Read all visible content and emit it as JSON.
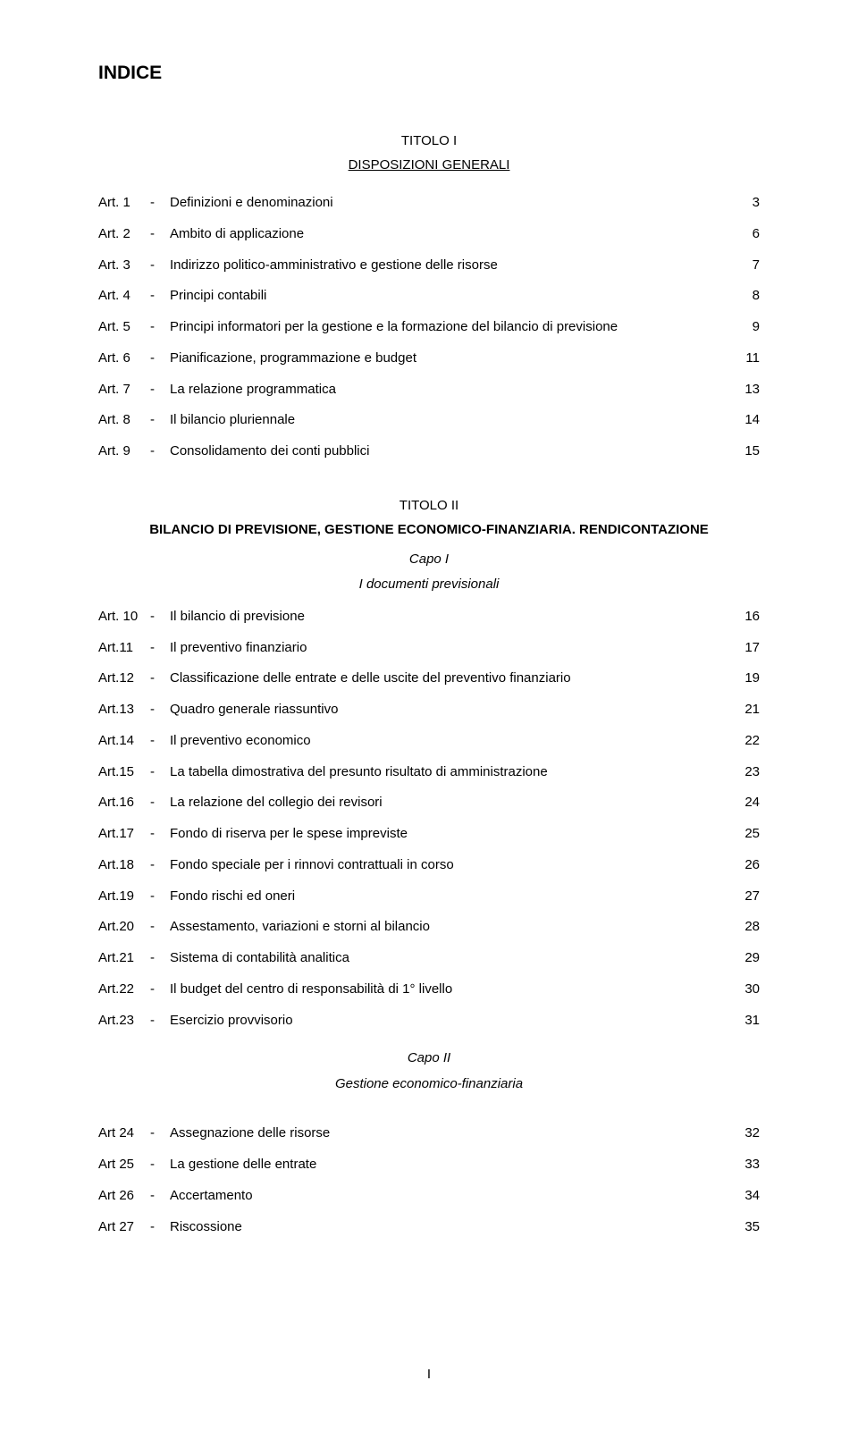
{
  "page": {
    "main_title": "INDICE",
    "page_number": "I"
  },
  "section1": {
    "titolo": "TITOLO I",
    "subtitle": "DISPOSIZIONI GENERALI",
    "items": [
      {
        "art": "Art. 1",
        "dash": "-",
        "desc": "Definizioni e denominazioni",
        "pg": "3"
      },
      {
        "art": "Art. 2",
        "dash": "-",
        "desc": "Ambito di applicazione",
        "pg": "6"
      },
      {
        "art": "Art. 3",
        "dash": "-",
        "desc": "Indirizzo politico-amministrativo e gestione delle risorse",
        "pg": "7"
      },
      {
        "art": "Art. 4",
        "dash": "-",
        "desc": "Principi contabili",
        "pg": "8"
      },
      {
        "art": "Art. 5",
        "dash": "-",
        "desc": "Principi informatori per la gestione e la formazione  del bilancio di previsione",
        "pg": "9"
      },
      {
        "art": "Art. 6",
        "dash": "-",
        "desc": "Pianificazione, programmazione e budget",
        "pg": "11"
      },
      {
        "art": "Art. 7",
        "dash": "-",
        "desc": "La relazione programmatica",
        "pg": "13"
      },
      {
        "art": "Art. 8",
        "dash": "-",
        "desc": "Il bilancio pluriennale",
        "pg": "14"
      },
      {
        "art": "Art. 9",
        "dash": "-",
        "desc": "Consolidamento dei conti pubblici",
        "pg": "15"
      }
    ]
  },
  "section2": {
    "titolo": "TITOLO II",
    "subtitle": "BILANCIO DI PREVISIONE, GESTIONE ECONOMICO-FINANZIARIA. RENDICONTAZIONE",
    "capo1": {
      "capo": "Capo I",
      "sub": "I documenti previsionali",
      "items": [
        {
          "art": "Art. 10",
          "dash": "-",
          "desc": "Il bilancio di previsione",
          "pg": "16"
        },
        {
          "art": "Art.11",
          "dash": "-",
          "desc": "Il preventivo finanziario",
          "pg": "17"
        },
        {
          "art": "Art.12",
          "dash": "-",
          "desc": "Classificazione delle entrate e delle uscite del preventivo finanziario",
          "pg": "19"
        },
        {
          "art": "Art.13",
          "dash": "-",
          "desc": "Quadro generale riassuntivo",
          "pg": "21"
        },
        {
          "art": "Art.14",
          "dash": "-",
          "desc": "Il preventivo economico",
          "pg": "22"
        },
        {
          "art": "Art.15",
          "dash": "-",
          "desc": "La tabella dimostrativa del presunto risultato di amministrazione",
          "pg": "23"
        },
        {
          "art": "Art.16",
          "dash": "-",
          "desc": "La relazione del collegio dei revisori",
          "pg": "24"
        },
        {
          "art": "Art.17",
          "dash": "-",
          "desc": "Fondo di riserva per le spese impreviste",
          "pg": "25"
        },
        {
          "art": "Art.18",
          "dash": "-",
          "desc": "Fondo speciale per i rinnovi contrattuali in corso",
          "pg": "26"
        },
        {
          "art": "Art.19",
          "dash": "-",
          "desc": "Fondo rischi ed oneri",
          "pg": "27"
        },
        {
          "art": "Art.20",
          "dash": "-",
          "desc": "Assestamento, variazioni e storni al bilancio",
          "pg": "28"
        },
        {
          "art": "Art.21",
          "dash": "-",
          "desc": "Sistema di contabilità analitica",
          "pg": "29"
        },
        {
          "art": "Art.22",
          "dash": "-",
          "desc": "Il budget del centro di responsabilità di 1° livello",
          "pg": "30"
        },
        {
          "art": "Art.23",
          "dash": "-",
          "desc": "Esercizio provvisorio",
          "pg": "31"
        }
      ]
    },
    "capo2": {
      "capo": "Capo II",
      "sub": "Gestione economico-finanziaria",
      "items": [
        {
          "art": "Art 24",
          "dash": "-",
          "desc": "Assegnazione delle risorse",
          "pg": "32"
        },
        {
          "art": "Art 25",
          "dash": "-",
          "desc": "La gestione delle entrate",
          "pg": "33"
        },
        {
          "art": "Art 26",
          "dash": "-",
          "desc": "Accertamento",
          "pg": "34"
        },
        {
          "art": "Art 27",
          "dash": "-",
          "desc": "Riscossione",
          "pg": "35"
        }
      ]
    }
  }
}
